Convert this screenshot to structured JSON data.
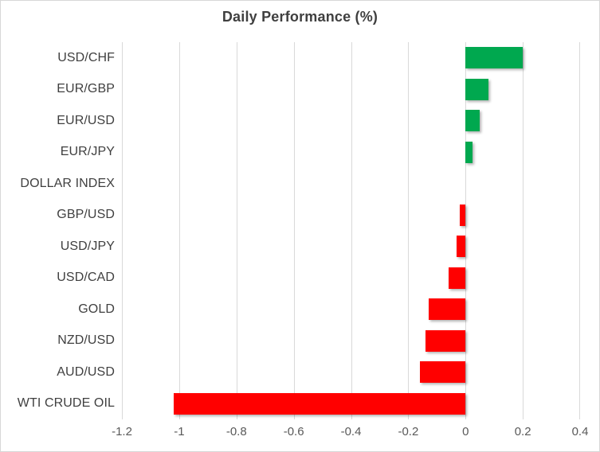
{
  "title": "Daily Performance (%)",
  "colors": {
    "positive_bar": "#00a84f",
    "negative_bar": "#ff0000",
    "gridline": "#d9d9d9",
    "title_text": "#3f3f3f",
    "category_text": "#3f3f3f",
    "tick_text": "#595959",
    "background": "#ffffff",
    "frame_border": "#d7d7d7"
  },
  "chart_data": {
    "type": "bar",
    "orientation": "horizontal",
    "title": "Daily Performance (%)",
    "categories": [
      "USD/CHF",
      "EUR/GBP",
      "EUR/USD",
      "EUR/JPY",
      "DOLLAR INDEX",
      "GBP/USD",
      "USD/JPY",
      "USD/CAD",
      "GOLD",
      "NZD/USD",
      "AUD/USD",
      "WTI CRUDE OIL"
    ],
    "values": [
      0.2,
      0.08,
      0.05,
      0.025,
      0.0,
      -0.02,
      -0.03,
      -0.06,
      -0.13,
      -0.14,
      -0.16,
      -1.02
    ],
    "xlabel": "",
    "ylabel": "",
    "xlim": [
      -1.2,
      0.4
    ],
    "xticks": [
      -1.2,
      -1.0,
      -0.8,
      -0.6,
      -0.4,
      -0.2,
      0.0,
      0.2,
      0.4
    ],
    "xtick_labels": [
      "-1.2",
      "-1",
      "-0.8",
      "-0.6",
      "-0.4",
      "-0.2",
      "0",
      "0.2",
      "0.4"
    ],
    "grid": "vertical",
    "legend": "none",
    "positive_color": "#00a84f",
    "negative_color": "#ff0000"
  }
}
